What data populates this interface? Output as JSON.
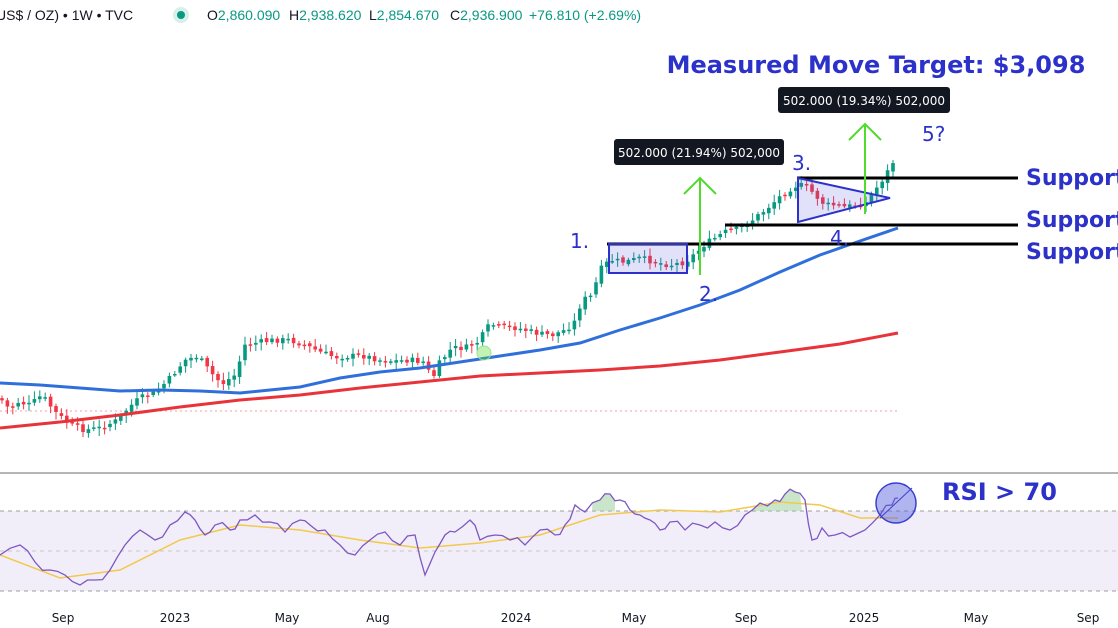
{
  "header": {
    "symbol": "US$ / OZ) • 1W • TVC",
    "ohlc": [
      {
        "k": "O",
        "v": "2,860.090"
      },
      {
        "k": "H",
        "v": "2,938.620"
      },
      {
        "k": "L",
        "v": "2,854.670"
      },
      {
        "k": "C",
        "v": "2,936.900"
      }
    ],
    "change": "+76.810 (+2.69%)",
    "status_dot_icon": "market-open-dot-icon"
  },
  "colors": {
    "up": "#089981",
    "down": "#f23645",
    "ma_blue": "#2f6fdb",
    "ma_red": "#e8333a",
    "annotation_blue": "#2c32c9",
    "arrow_green": "#4fdc2c",
    "rsi_line": "#7e57c2",
    "rsi_signal": "#f2c94c",
    "rsi_band": "#ede7f6"
  },
  "chart_data": [
    {
      "type": "candlestick",
      "title": "",
      "x_ticks": [
        "Sep",
        "2023",
        "May",
        "Aug",
        "2024",
        "May",
        "Sep",
        "2025",
        "May",
        "Sep"
      ],
      "overlays": [
        {
          "name": "",
          "type": "moving-average",
          "color": "#2f6fdb"
        },
        {
          "name": "",
          "type": "moving-average",
          "color": "#e8333a"
        }
      ],
      "annotations": {
        "target": "Measured Move Target: $3,098",
        "measure_1": "502.000 (21.94%) 502,000",
        "measure_2": "502.000 (19.34%) 502,000",
        "wave_labels": [
          "1.",
          "2.",
          "3.",
          "4.",
          "5?"
        ],
        "support_labels": [
          "Support",
          "Support",
          "Support"
        ],
        "rsi_note": "RSI > 70"
      },
      "last_close": 2936.9
    },
    {
      "type": "line",
      "title": "",
      "series": [
        {
          "name": "",
          "color": "#7e57c2"
        },
        {
          "name": "",
          "color": "#f2c94c"
        }
      ],
      "ylim": [
        0,
        100
      ],
      "band": [
        30,
        70
      ]
    }
  ]
}
